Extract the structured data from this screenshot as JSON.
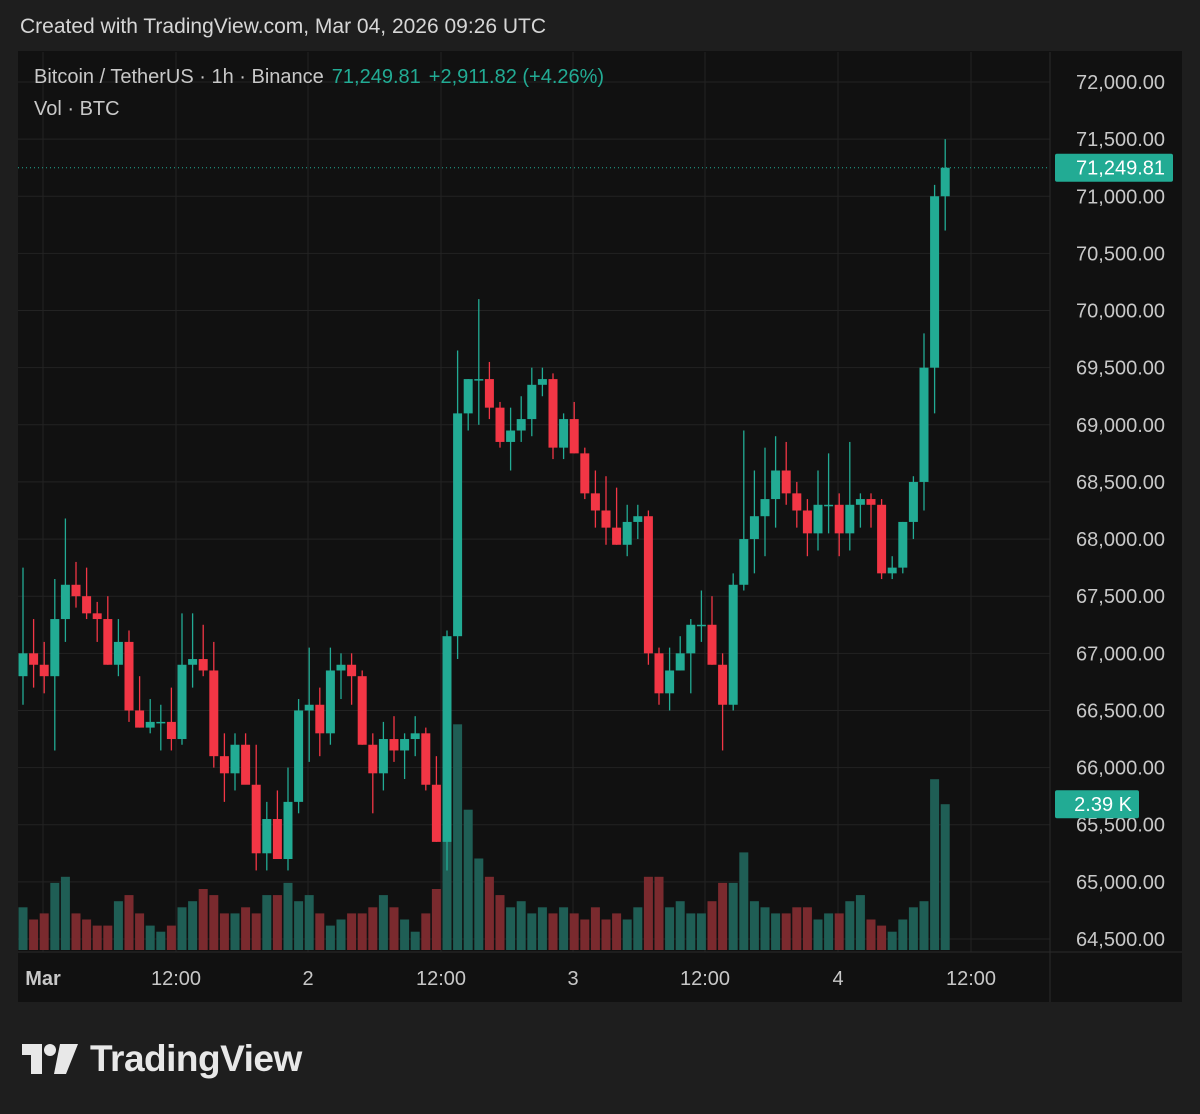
{
  "header": {
    "created_text": "Created with TradingView.com, Mar 04, 2026 09:26 UTC"
  },
  "legend": {
    "symbol": "Bitcoin / TetherUS · 1h · Binance",
    "price": "71,249.81",
    "change": "+2,911.82 (+4.26%)",
    "volume_label": "Vol · BTC"
  },
  "price_axis": {
    "ticks": [
      "72,000.00",
      "71,500.00",
      "71,000.00",
      "70,500.00",
      "70,000.00",
      "69,500.00",
      "69,000.00",
      "68,500.00",
      "68,000.00",
      "67,500.00",
      "67,000.00",
      "66,500.00",
      "66,000.00",
      "65,500.00",
      "65,000.00",
      "64,500.00"
    ],
    "last_price_label": "71,249.81",
    "volume_badge": "2.39 K"
  },
  "time_axis": {
    "labels": [
      "Mar",
      "12:00",
      "2",
      "12:00",
      "3",
      "12:00",
      "4",
      "12:00"
    ]
  },
  "colors": {
    "up": "#22ab94",
    "down": "#f23645",
    "up_volume": "#1f5e55",
    "down_volume": "#7a2a2e",
    "badge": "#22ab94"
  },
  "brand": {
    "name": "TradingView"
  },
  "chart_data": {
    "type": "candlestick",
    "interval": "1h",
    "ylim": [
      64500,
      72000
    ],
    "candles": [
      {
        "o": 66800,
        "h": 67750,
        "l": 66550,
        "c": 67000
      },
      {
        "o": 67000,
        "h": 67300,
        "l": 66700,
        "c": 66900
      },
      {
        "o": 66900,
        "h": 67100,
        "l": 66650,
        "c": 66800
      },
      {
        "o": 66800,
        "h": 67650,
        "l": 66150,
        "c": 67300
      },
      {
        "o": 67300,
        "h": 68180,
        "l": 67100,
        "c": 67600
      },
      {
        "o": 67600,
        "h": 67800,
        "l": 67400,
        "c": 67500
      },
      {
        "o": 67500,
        "h": 67750,
        "l": 67300,
        "c": 67350
      },
      {
        "o": 67350,
        "h": 67450,
        "l": 67100,
        "c": 67300
      },
      {
        "o": 67300,
        "h": 67500,
        "l": 66900,
        "c": 66900
      },
      {
        "o": 66900,
        "h": 67300,
        "l": 66800,
        "c": 67100
      },
      {
        "o": 67100,
        "h": 67200,
        "l": 66400,
        "c": 66500
      },
      {
        "o": 66500,
        "h": 66800,
        "l": 66350,
        "c": 66350
      },
      {
        "o": 66350,
        "h": 66600,
        "l": 66300,
        "c": 66400
      },
      {
        "o": 66400,
        "h": 66550,
        "l": 66150,
        "c": 66400
      },
      {
        "o": 66400,
        "h": 66700,
        "l": 66150,
        "c": 66250
      },
      {
        "o": 66250,
        "h": 67350,
        "l": 66200,
        "c": 66900
      },
      {
        "o": 66900,
        "h": 67350,
        "l": 66700,
        "c": 66950
      },
      {
        "o": 66950,
        "h": 67250,
        "l": 66800,
        "c": 66850
      },
      {
        "o": 66850,
        "h": 67100,
        "l": 66000,
        "c": 66100
      },
      {
        "o": 66100,
        "h": 66300,
        "l": 65700,
        "c": 65950
      },
      {
        "o": 65950,
        "h": 66300,
        "l": 65800,
        "c": 66200
      },
      {
        "o": 66200,
        "h": 66300,
        "l": 65900,
        "c": 65850
      },
      {
        "o": 65850,
        "h": 66200,
        "l": 65100,
        "c": 65250
      },
      {
        "o": 65250,
        "h": 65700,
        "l": 65100,
        "c": 65550
      },
      {
        "o": 65550,
        "h": 65800,
        "l": 65200,
        "c": 65200
      },
      {
        "o": 65200,
        "h": 66000,
        "l": 65100,
        "c": 65700
      },
      {
        "o": 65700,
        "h": 66600,
        "l": 65600,
        "c": 66500
      },
      {
        "o": 66500,
        "h": 67050,
        "l": 66050,
        "c": 66550
      },
      {
        "o": 66550,
        "h": 66700,
        "l": 66100,
        "c": 66300
      },
      {
        "o": 66300,
        "h": 67050,
        "l": 66200,
        "c": 66850
      },
      {
        "o": 66850,
        "h": 67000,
        "l": 66600,
        "c": 66900
      },
      {
        "o": 66900,
        "h": 67000,
        "l": 66550,
        "c": 66800
      },
      {
        "o": 66800,
        "h": 66850,
        "l": 66200,
        "c": 66200
      },
      {
        "o": 66200,
        "h": 66300,
        "l": 65600,
        "c": 65950
      },
      {
        "o": 65950,
        "h": 66400,
        "l": 65800,
        "c": 66250
      },
      {
        "o": 66250,
        "h": 66450,
        "l": 66050,
        "c": 66150
      },
      {
        "o": 66150,
        "h": 66300,
        "l": 65900,
        "c": 66250
      },
      {
        "o": 66250,
        "h": 66450,
        "l": 66100,
        "c": 66300
      },
      {
        "o": 66300,
        "h": 66350,
        "l": 65800,
        "c": 65850
      },
      {
        "o": 65850,
        "h": 66100,
        "l": 65350,
        "c": 65350
      },
      {
        "o": 65350,
        "h": 67200,
        "l": 65100,
        "c": 67150
      },
      {
        "o": 67150,
        "h": 69650,
        "l": 66950,
        "c": 69100
      },
      {
        "o": 69100,
        "h": 69400,
        "l": 68950,
        "c": 69400
      },
      {
        "o": 69400,
        "h": 70100,
        "l": 69000,
        "c": 69400
      },
      {
        "o": 69400,
        "h": 69550,
        "l": 69050,
        "c": 69150
      },
      {
        "o": 69150,
        "h": 69200,
        "l": 68800,
        "c": 68850
      },
      {
        "o": 68850,
        "h": 69150,
        "l": 68600,
        "c": 68950
      },
      {
        "o": 68950,
        "h": 69250,
        "l": 68850,
        "c": 69050
      },
      {
        "o": 69050,
        "h": 69500,
        "l": 68900,
        "c": 69350
      },
      {
        "o": 69350,
        "h": 69500,
        "l": 69250,
        "c": 69400
      },
      {
        "o": 69400,
        "h": 69450,
        "l": 68700,
        "c": 68800
      },
      {
        "o": 68800,
        "h": 69100,
        "l": 68700,
        "c": 69050
      },
      {
        "o": 69050,
        "h": 69200,
        "l": 68750,
        "c": 68750
      },
      {
        "o": 68750,
        "h": 68800,
        "l": 68350,
        "c": 68400
      },
      {
        "o": 68400,
        "h": 68600,
        "l": 68100,
        "c": 68250
      },
      {
        "o": 68250,
        "h": 68550,
        "l": 67950,
        "c": 68100
      },
      {
        "o": 68100,
        "h": 68450,
        "l": 67950,
        "c": 67950
      },
      {
        "o": 67950,
        "h": 68300,
        "l": 67850,
        "c": 68150
      },
      {
        "o": 68150,
        "h": 68300,
        "l": 68000,
        "c": 68200
      },
      {
        "o": 68200,
        "h": 68250,
        "l": 66900,
        "c": 67000
      },
      {
        "o": 67000,
        "h": 67050,
        "l": 66550,
        "c": 66650
      },
      {
        "o": 66650,
        "h": 67050,
        "l": 66500,
        "c": 66850
      },
      {
        "o": 66850,
        "h": 67150,
        "l": 66850,
        "c": 67000
      },
      {
        "o": 67000,
        "h": 67300,
        "l": 66650,
        "c": 67250
      },
      {
        "o": 67250,
        "h": 67550,
        "l": 67100,
        "c": 67250
      },
      {
        "o": 67250,
        "h": 67500,
        "l": 66900,
        "c": 66900
      },
      {
        "o": 66900,
        "h": 67000,
        "l": 66150,
        "c": 66550
      },
      {
        "o": 66550,
        "h": 67700,
        "l": 66500,
        "c": 67600
      },
      {
        "o": 67600,
        "h": 68950,
        "l": 67550,
        "c": 68000
      },
      {
        "o": 68000,
        "h": 68600,
        "l": 67700,
        "c": 68200
      },
      {
        "o": 68200,
        "h": 68800,
        "l": 67850,
        "c": 68350
      },
      {
        "o": 68350,
        "h": 68900,
        "l": 68100,
        "c": 68600
      },
      {
        "o": 68600,
        "h": 68850,
        "l": 68300,
        "c": 68400
      },
      {
        "o": 68400,
        "h": 68500,
        "l": 68100,
        "c": 68250
      },
      {
        "o": 68250,
        "h": 68350,
        "l": 67850,
        "c": 68050
      },
      {
        "o": 68050,
        "h": 68600,
        "l": 67900,
        "c": 68300
      },
      {
        "o": 68300,
        "h": 68750,
        "l": 68050,
        "c": 68300
      },
      {
        "o": 68300,
        "h": 68400,
        "l": 67850,
        "c": 68050
      },
      {
        "o": 68050,
        "h": 68850,
        "l": 67900,
        "c": 68300
      },
      {
        "o": 68300,
        "h": 68400,
        "l": 68100,
        "c": 68350
      },
      {
        "o": 68350,
        "h": 68400,
        "l": 68100,
        "c": 68300
      },
      {
        "o": 68300,
        "h": 68350,
        "l": 67650,
        "c": 67700
      },
      {
        "o": 67700,
        "h": 67850,
        "l": 67650,
        "c": 67750
      },
      {
        "o": 67750,
        "h": 68150,
        "l": 67700,
        "c": 68150
      },
      {
        "o": 68150,
        "h": 68550,
        "l": 68000,
        "c": 68500
      },
      {
        "o": 68500,
        "h": 69800,
        "l": 68250,
        "c": 69500
      },
      {
        "o": 69500,
        "h": 71100,
        "l": 69100,
        "c": 71000
      },
      {
        "o": 71000,
        "h": 71500,
        "l": 70700,
        "c": 71249.81
      }
    ],
    "volume": [
      0.7,
      0.5,
      0.6,
      1.1,
      1.2,
      0.6,
      0.5,
      0.4,
      0.4,
      0.8,
      0.9,
      0.6,
      0.4,
      0.3,
      0.4,
      0.7,
      0.8,
      1.0,
      0.9,
      0.6,
      0.6,
      0.7,
      0.6,
      0.9,
      0.9,
      1.1,
      0.8,
      0.9,
      0.6,
      0.4,
      0.5,
      0.6,
      0.6,
      0.7,
      0.9,
      0.7,
      0.5,
      0.3,
      0.6,
      1.0,
      1.8,
      3.7,
      2.3,
      1.5,
      1.2,
      0.9,
      0.7,
      0.8,
      0.6,
      0.7,
      0.6,
      0.7,
      0.6,
      0.5,
      0.7,
      0.5,
      0.6,
      0.5,
      0.7,
      1.2,
      1.2,
      0.7,
      0.8,
      0.6,
      0.6,
      0.8,
      1.1,
      1.1,
      1.6,
      0.8,
      0.7,
      0.6,
      0.6,
      0.7,
      0.7,
      0.5,
      0.6,
      0.6,
      0.8,
      0.9,
      0.5,
      0.4,
      0.3,
      0.5,
      0.7,
      0.8,
      2.8,
      2.39
    ],
    "x_labels": [
      "Mar",
      "12:00",
      "2",
      "12:00",
      "3",
      "12:00",
      "4",
      "12:00"
    ]
  }
}
